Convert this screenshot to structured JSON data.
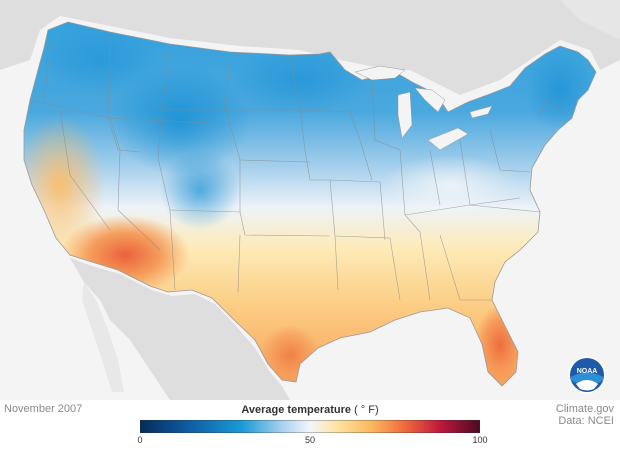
{
  "map": {
    "title": "Average temperature",
    "unit": "( ° F)",
    "period": "November 2007",
    "colors": {
      "cold": "#1a9ad8",
      "cool": "#8cc4e6",
      "neutral": "#f2f5f8",
      "warm": "#fdd68b",
      "hot": "#f5a25c",
      "very_hot": "#ee6a3d",
      "land_bg": "#dcdcdc",
      "water": "#f4f4f4"
    }
  },
  "legend": {
    "min": 0,
    "mid": 50,
    "max": 100,
    "ticks": [
      {
        "value": 0,
        "label": "0"
      },
      {
        "value": 50,
        "label": "50"
      },
      {
        "value": 100,
        "label": "100"
      }
    ],
    "stops": [
      {
        "value": 0,
        "color": "#052b5a"
      },
      {
        "value": 15,
        "color": "#0f5fa6"
      },
      {
        "value": 30,
        "color": "#1a9ad8"
      },
      {
        "value": 42,
        "color": "#a9d3ee"
      },
      {
        "value": 50,
        "color": "#f3f6f9"
      },
      {
        "value": 58,
        "color": "#fde3a2"
      },
      {
        "value": 68,
        "color": "#fbb860"
      },
      {
        "value": 78,
        "color": "#ef6a3c"
      },
      {
        "value": 88,
        "color": "#c01a3b"
      },
      {
        "value": 100,
        "color": "#4b0a24"
      }
    ]
  },
  "credits": {
    "source": "Climate.gov",
    "data": "Data: NCEI"
  },
  "logo": {
    "text": "NOAA",
    "color": "#1e5aa8"
  }
}
